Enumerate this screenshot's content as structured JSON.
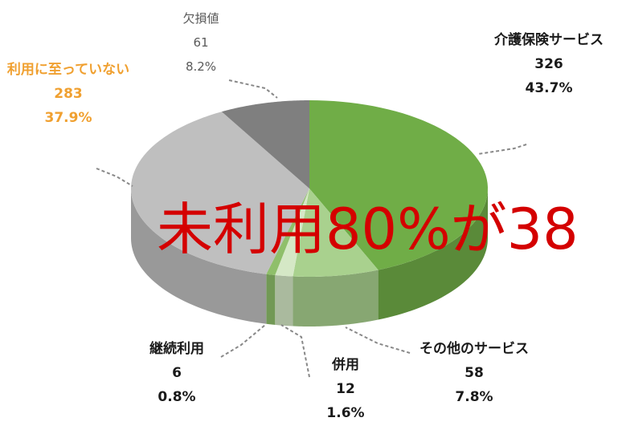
{
  "chart_data": {
    "type": "pie",
    "categories": [
      "介護保険サービス",
      "その他のサービス",
      "併用",
      "継続利用",
      "利用に至っていない",
      "欠損値"
    ],
    "values": [
      326,
      58,
      12,
      6,
      283,
      61
    ],
    "percent_labels": [
      "43.7%",
      "7.8%",
      "1.6%",
      "0.8%",
      "37.9%",
      "8.2%"
    ],
    "colors": [
      "#70ad47",
      "#a9d18e",
      "#d5e8c6",
      "#8fbf6a",
      "#bfbfbf",
      "#7f7f7f"
    ],
    "label_colors": [
      "#1a1a1a",
      "#1a1a1a",
      "#1a1a1a",
      "#1a1a1a",
      "#f0a030",
      "#595959"
    ],
    "annotation": "未利用80%が38"
  }
}
